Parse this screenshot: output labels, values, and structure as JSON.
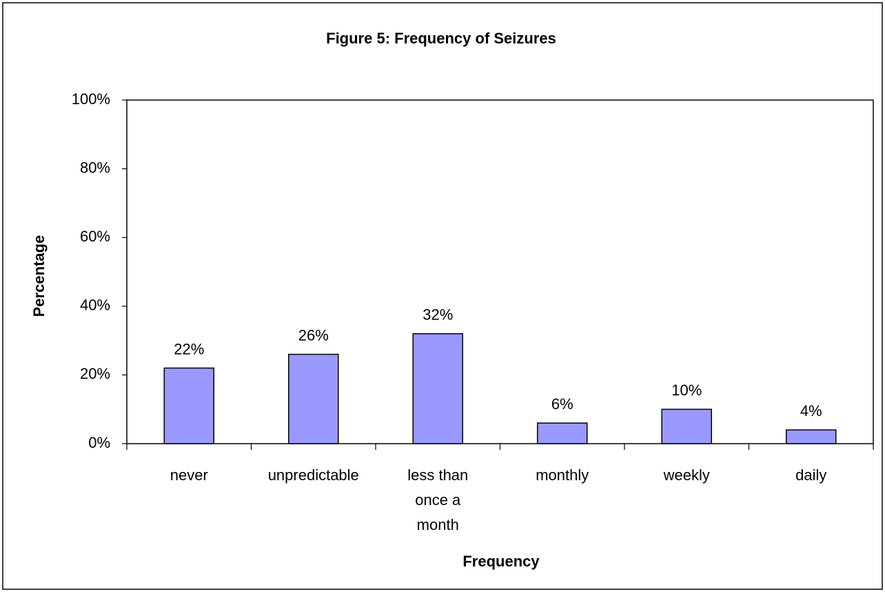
{
  "chart_data": {
    "type": "bar",
    "title": "Figure 5: Frequency of Seizures",
    "x_label": "Frequency",
    "y_label": "Percentage",
    "categories": [
      "never",
      "unpredictable",
      "less than once a month",
      "monthly",
      "weekly",
      "daily"
    ],
    "values": [
      22,
      26,
      32,
      6,
      10,
      4
    ],
    "value_labels": [
      "22%",
      "26%",
      "32%",
      "6%",
      "10%",
      "4%"
    ],
    "color": "#9999ff",
    "ylim": [
      0,
      100
    ],
    "yticks": [
      {
        "value": 0,
        "label": "0%"
      },
      {
        "value": 20,
        "label": "20%"
      },
      {
        "value": 40,
        "label": "40%"
      },
      {
        "value": 60,
        "label": "60%"
      },
      {
        "value": 80,
        "label": "80%"
      },
      {
        "value": 100,
        "label": "100%"
      }
    ],
    "grid": false
  }
}
